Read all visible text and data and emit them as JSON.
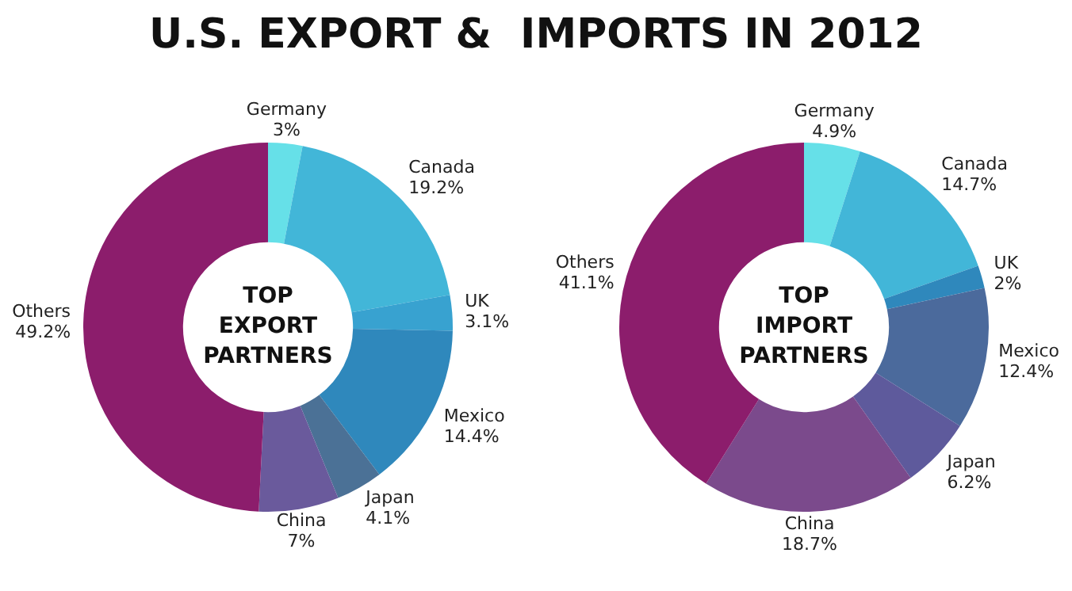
{
  "chart_data": [
    {
      "type": "donut",
      "title": "U.S. EXPORT &  IMPORTS IN 2012",
      "annotations": [
        "TOP EXPORT PARTNERS"
      ],
      "categories": [
        "Germany",
        "Canada",
        "UK",
        "Mexico",
        "Japan",
        "China",
        "Others"
      ],
      "values": [
        3,
        19.2,
        3.1,
        14.4,
        4.1,
        7,
        49.2
      ],
      "value_labels": [
        "3%",
        "19.2%",
        "3.1%",
        "14.4%",
        "4.1%",
        "7%",
        "49.2%"
      ],
      "colors": [
        "#66e0e8",
        "#42b6d8",
        "#38a2d0",
        "#2f88bc",
        "#4b7196",
        "#6a5a9c",
        "#8c1d6c"
      ]
    },
    {
      "type": "donut",
      "annotations": [
        "TOP IMPORT PARTNERS"
      ],
      "categories": [
        "Germany",
        "Canada",
        "UK",
        "Mexico",
        "Japan",
        "China",
        "Others"
      ],
      "values": [
        4.9,
        14.7,
        2,
        12.4,
        6.2,
        18.7,
        41.1
      ],
      "value_labels": [
        "4.9%",
        "14.7%",
        "2%",
        "12.4%",
        "6.2%",
        "18.7%",
        "41.1%"
      ],
      "colors": [
        "#66e0e8",
        "#42b6d8",
        "#2f88bc",
        "#4b6a9c",
        "#5e5a9c",
        "#7b4a8c",
        "#8c1d6c"
      ]
    }
  ]
}
